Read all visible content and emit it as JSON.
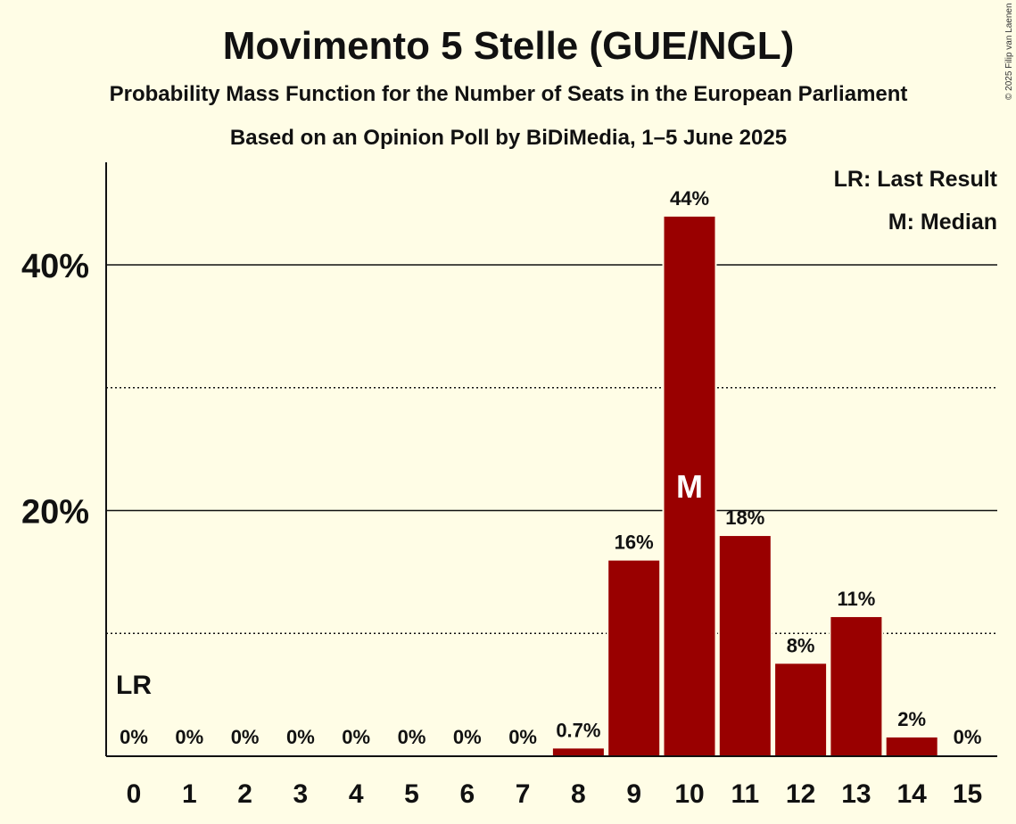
{
  "chart_data": {
    "type": "bar",
    "title": "Movimento 5 Stelle (GUE/NGL)",
    "subtitle": "Probability Mass Function for the Number of Seats in the European Parliament",
    "subtitle2": "Based on an Opinion Poll by BiDiMedia, 1–5 June 2025",
    "copyright": "© 2025 Filip van Laenen",
    "categories": [
      "0",
      "1",
      "2",
      "3",
      "4",
      "5",
      "6",
      "7",
      "8",
      "9",
      "10",
      "11",
      "12",
      "13",
      "14",
      "15"
    ],
    "values": [
      0,
      0,
      0,
      0,
      0,
      0,
      0,
      0,
      0.7,
      16,
      44,
      18,
      7.6,
      11.4,
      1.6,
      0
    ],
    "data_labels": [
      "0%",
      "0%",
      "0%",
      "0%",
      "0%",
      "0%",
      "0%",
      "0%",
      "0.7%",
      "16%",
      "44%",
      "18%",
      "8%",
      "11%",
      "2%",
      "0%"
    ],
    "ylim": [
      0,
      48
    ],
    "yticks": [
      {
        "value": 20,
        "label": "20%"
      },
      {
        "value": 40,
        "label": "40%"
      }
    ],
    "minor_gridlines": [
      10,
      30
    ],
    "last_result_index": 0,
    "last_result_label": "LR",
    "median_index": 10,
    "median_label": "M",
    "legend": [
      "LR: Last Result",
      "M: Median"
    ],
    "bar_color": "#990000"
  }
}
